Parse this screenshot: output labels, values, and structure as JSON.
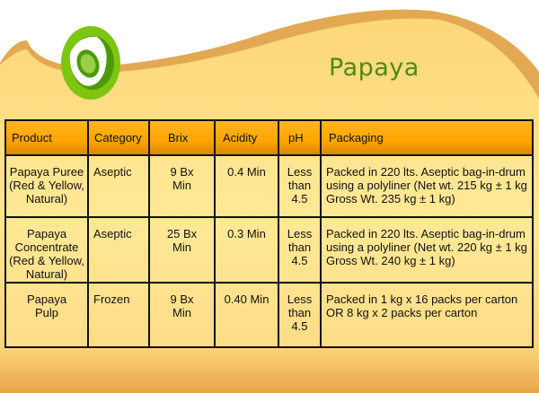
{
  "title": "Papaya",
  "colors": {
    "title": "#4f8a10",
    "header": "#ffa500",
    "background": "#fdd77a",
    "swoosh": "#e3a852"
  },
  "logo_icon": "papaya-icon",
  "table": {
    "headers": [
      "Product",
      "Category",
      "Brix",
      "Acidity",
      "pH",
      "Packaging"
    ],
    "rows": [
      [
        "Papaya Puree (Red & Yellow, Natural)",
        "Aseptic",
        "9 Bx Min",
        "0.4 Min",
        "Less than 4.5",
        "Packed in 220 lts. Aseptic bag-in-drum using a polyliner (Net wt. 215 kg ± 1 kg Gross Wt. 235 kg ± 1 kg)"
      ],
      [
        "Papaya Concentrate (Red & Yellow, Natural)",
        "Aseptic",
        "25 Bx Min",
        "0.3 Min",
        "Less than 4.5",
        "Packed in 220 lts. Aseptic bag-in-drum using a polyliner (Net wt. 220 kg ± 1 kg Gross Wt. 240 kg ± 1 kg)"
      ],
      [
        "Papaya Pulp",
        "Frozen",
        "9 Bx Min",
        "0.40 Min",
        "Less than 4.5",
        "Packed in 1 kg x 16 packs per carton OR 8 kg x 2 packs per carton"
      ]
    ]
  }
}
